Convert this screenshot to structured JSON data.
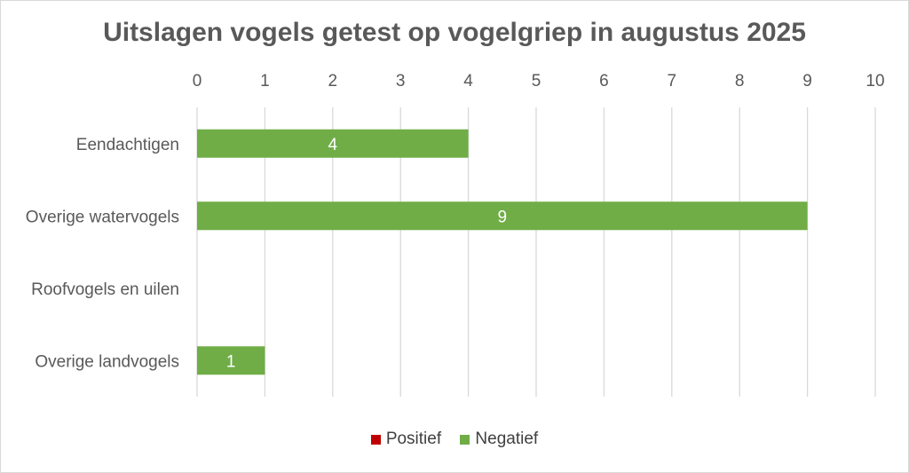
{
  "chart_data": {
    "type": "bar",
    "orientation": "horizontal",
    "stacked": true,
    "title": "Uitslagen vogels getest op vogelgriep in augustus 2025",
    "categories": [
      "Eendachtigen",
      "Overige watervogels",
      "Roofvogels en uilen",
      "Overige landvogels"
    ],
    "series": [
      {
        "name": "Positief",
        "color": "#c00000",
        "values": [
          0,
          0,
          0,
          0
        ]
      },
      {
        "name": "Negatief",
        "color": "#70ad47",
        "values": [
          4,
          9,
          0,
          1
        ]
      }
    ],
    "xlim": [
      0,
      10
    ],
    "xticks": [
      "0",
      "1",
      "2",
      "3",
      "4",
      "5",
      "6",
      "7",
      "8",
      "9",
      "10"
    ],
    "x_axis_position": "top",
    "grid": true,
    "legend_position": "bottom"
  }
}
